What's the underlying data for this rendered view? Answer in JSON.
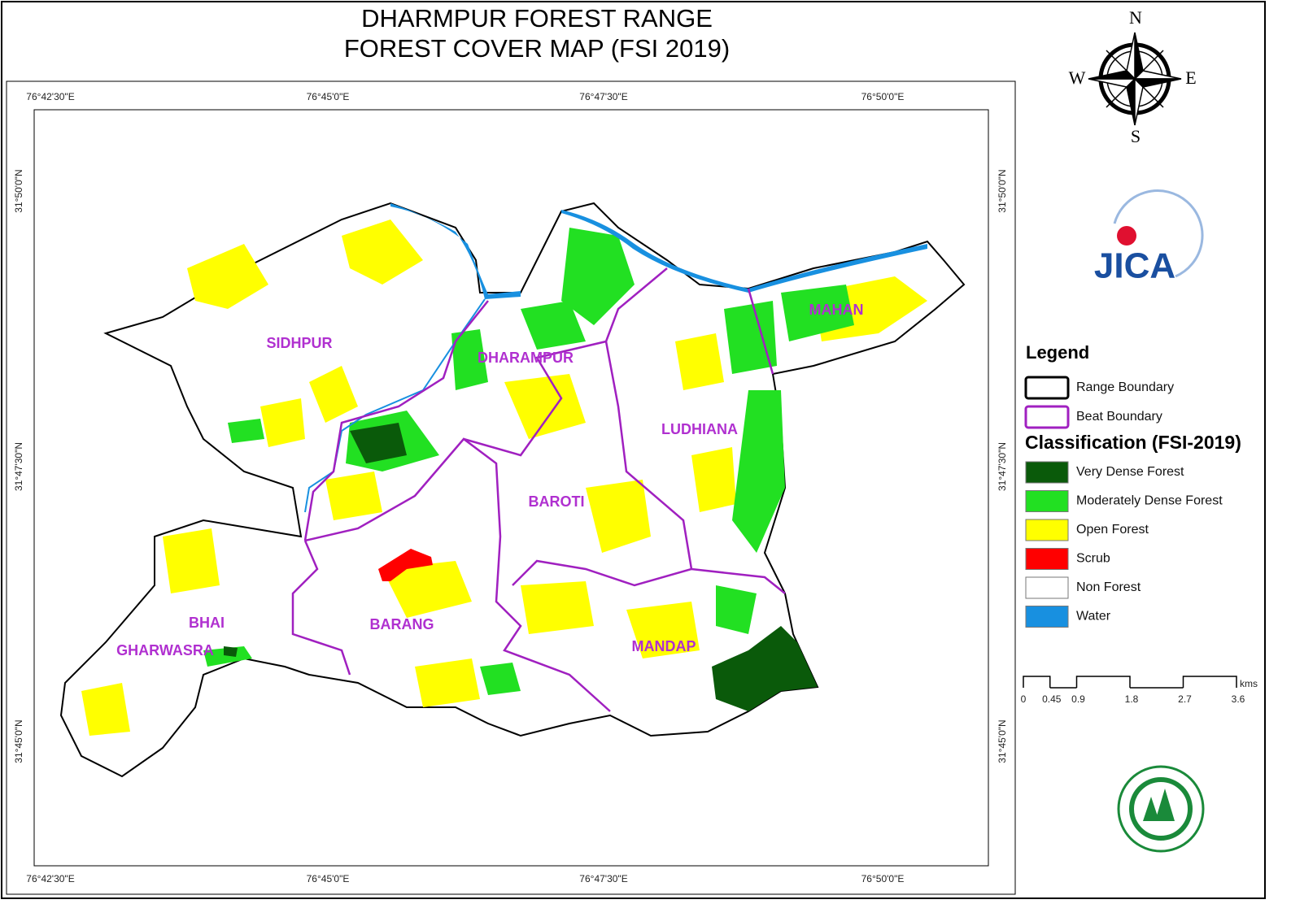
{
  "title": [
    "DHARMPUR FOREST RANGE",
    "FOREST COVER MAP (FSI 2019)"
  ],
  "compass": {
    "north": "N",
    "east": "E",
    "south": "S",
    "west": "W"
  },
  "logo": "JICA",
  "longitudes": [
    "76°42'30\"E",
    "76°45'0\"E",
    "76°47'30\"E",
    "76°50'0\"E"
  ],
  "latitudes": [
    "31°50'0\"N",
    "31°47'30\"N",
    "31°45'0\"N"
  ],
  "beats": [
    "SIDHPUR",
    "DHARAMPUR",
    "MAHAN",
    "LUDHIANA",
    "BAROTI",
    "BHAI",
    "GHARWASRA",
    "BARANG",
    "MANDAP"
  ],
  "legend": {
    "title": "Legend",
    "boundaries": [
      {
        "label": "Range Boundary",
        "color": "#000000"
      },
      {
        "label": "Beat Boundary",
        "color": "#a020c0"
      }
    ],
    "classification_title": "Classification (FSI-2019)",
    "classes": [
      {
        "label": "Very Dense Forest",
        "color": "#0a5a0a"
      },
      {
        "label": "Moderately Dense Forest",
        "color": "#22e022"
      },
      {
        "label": "Open Forest",
        "color": "#ffff00"
      },
      {
        "label": "Scrub",
        "color": "#ff0000"
      },
      {
        "label": "Non Forest",
        "color": "#ffffff"
      },
      {
        "label": "Water",
        "color": "#1890e0"
      }
    ]
  },
  "scale_bar": {
    "unit": "kms",
    "ticks": [
      0,
      0.45,
      0.9,
      1.8,
      2.7,
      3.6
    ]
  }
}
